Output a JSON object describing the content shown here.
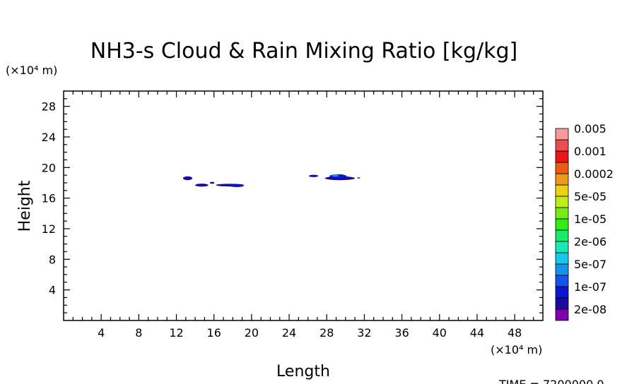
{
  "chart_data": {
    "type": "heatmap",
    "title": "NH3-s Cloud & Rain Mixing Ratio [kg/kg]",
    "xlabel": "Length",
    "ylabel": "Height",
    "x_unit": "(×10⁴ m)",
    "y_unit": "(×10⁴ m)",
    "xlim": [
      0,
      51
    ],
    "ylim": [
      0,
      30
    ],
    "x_ticks": [
      4,
      8,
      12,
      16,
      20,
      24,
      28,
      32,
      36,
      40,
      44,
      48
    ],
    "y_ticks": [
      4,
      8,
      12,
      16,
      20,
      24,
      28
    ],
    "time_label": "TIME = 7200000.0",
    "colorbar": {
      "colors": [
        "#7f00b0",
        "#1c0a9e",
        "#0a16d0",
        "#1652ec",
        "#1694ec",
        "#16c8ec",
        "#16ecb2",
        "#16ec6a",
        "#32ec16",
        "#76ec16",
        "#c2ec16",
        "#ecd216",
        "#ec9a16",
        "#ec5a16",
        "#ec1616",
        "#ec4c4c",
        "#f39a9a"
      ],
      "labels": [
        "2e-08",
        "1e-07",
        "5e-07",
        "2e-06",
        "1e-05",
        "5e-05",
        "0.0002",
        "0.001",
        "0.005"
      ]
    },
    "features": [
      {
        "x": 13.2,
        "y": 18.6,
        "w": 1.0,
        "h": 0.5,
        "color": "#1c0a9e"
      },
      {
        "x": 14.7,
        "y": 17.7,
        "w": 1.4,
        "h": 0.4,
        "color": "#1c0a9e"
      },
      {
        "x": 15.8,
        "y": 18.0,
        "w": 0.5,
        "h": 0.25,
        "color": "#1c0a9e"
      },
      {
        "x": 17.7,
        "y": 17.7,
        "w": 3.0,
        "h": 0.35,
        "color": "#1c0a9e"
      },
      {
        "x": 18.4,
        "y": 17.6,
        "w": 1.5,
        "h": 0.3,
        "color": "#0a16d0"
      },
      {
        "x": 26.6,
        "y": 18.9,
        "w": 1.0,
        "h": 0.3,
        "color": "#1c0a9e"
      },
      {
        "x": 29.4,
        "y": 18.6,
        "w": 3.2,
        "h": 0.5,
        "color": "#1c0a9e"
      },
      {
        "x": 29.2,
        "y": 18.85,
        "w": 1.8,
        "h": 0.55,
        "color": "#0a16d0"
      },
      {
        "x": 28.9,
        "y": 18.95,
        "w": 0.7,
        "h": 0.3,
        "color": "#1694ec"
      },
      {
        "x": 31.4,
        "y": 18.65,
        "w": 0.3,
        "h": 0.15,
        "color": "#1c0a9e"
      }
    ]
  }
}
